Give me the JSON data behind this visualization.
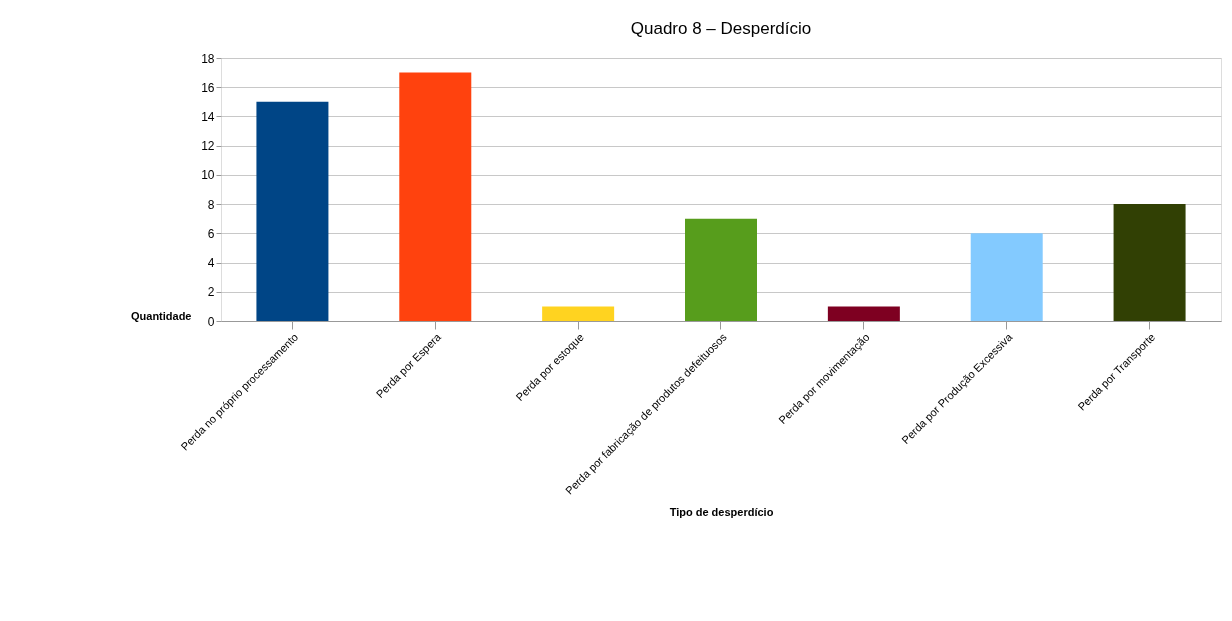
{
  "chart_data": {
    "type": "bar",
    "title": "Quadro 8 – Desperdício",
    "xlabel": "Tipo de desperdício",
    "ylabel": "Quantidade",
    "categories": [
      "Perda no próprio processamento",
      "Perda por Espera",
      "Perda por estoque",
      "Perda por fabricação de produtos defeituosos",
      "Perda por movimentação",
      "Perda por Produção Excessiva",
      "Perda por Transporte"
    ],
    "values": [
      15,
      17,
      1,
      7,
      1,
      6,
      8
    ],
    "colors": [
      "#004586",
      "#ff420e",
      "#ffd320",
      "#579d1c",
      "#7e0021",
      "#83caff",
      "#314004"
    ],
    "ylim": [
      0,
      18
    ],
    "yticks": [
      0,
      2,
      4,
      6,
      8,
      10,
      12,
      14,
      16,
      18
    ],
    "grid": "y",
    "legend": false
  }
}
